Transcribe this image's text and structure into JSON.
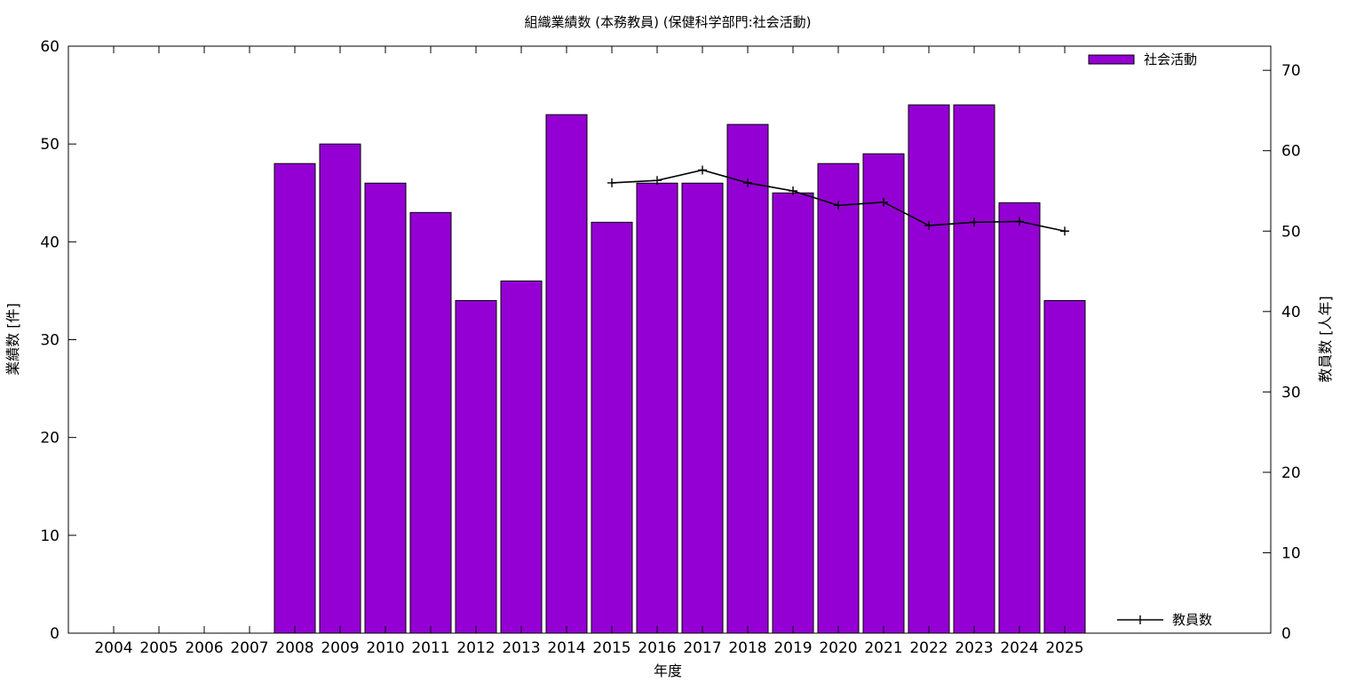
{
  "chart_data": {
    "type": "bar",
    "title": "組織業績数 (本務教員) (保健科学部門:社会活動)",
    "xlabel": "年度",
    "ylabel": "業績数 [件]",
    "y2label": "教員数 [人年]",
    "categories": [
      "2004",
      "2005",
      "2006",
      "2007",
      "2008",
      "2009",
      "2010",
      "2011",
      "2012",
      "2013",
      "2014",
      "2015",
      "2016",
      "2017",
      "2018",
      "2019",
      "2020",
      "2021",
      "2022",
      "2023",
      "2024",
      "2025"
    ],
    "ylim": [
      0,
      60
    ],
    "y2lim": [
      0,
      73
    ],
    "yticks": [
      0,
      10,
      20,
      30,
      40,
      50,
      60
    ],
    "y2ticks": [
      0,
      10,
      20,
      30,
      40,
      50,
      60,
      70
    ],
    "series": [
      {
        "name": "社会活動",
        "type": "bar",
        "axis": "left",
        "color": "#9400d3",
        "values": [
          null,
          null,
          null,
          null,
          48,
          50,
          46,
          43,
          34,
          36,
          53,
          42,
          46,
          46,
          52,
          45,
          48,
          49,
          54,
          54,
          44,
          34
        ]
      },
      {
        "name": "教員数",
        "type": "line",
        "axis": "right",
        "color": "#000000",
        "values": [
          null,
          null,
          null,
          null,
          null,
          null,
          null,
          null,
          null,
          null,
          null,
          56.0,
          56.3,
          57.6,
          56.0,
          55.0,
          53.2,
          53.6,
          50.7,
          51.1,
          51.2,
          50.0
        ]
      }
    ],
    "legend": [
      "top-right",
      "bottom-right"
    ],
    "grid": false
  }
}
